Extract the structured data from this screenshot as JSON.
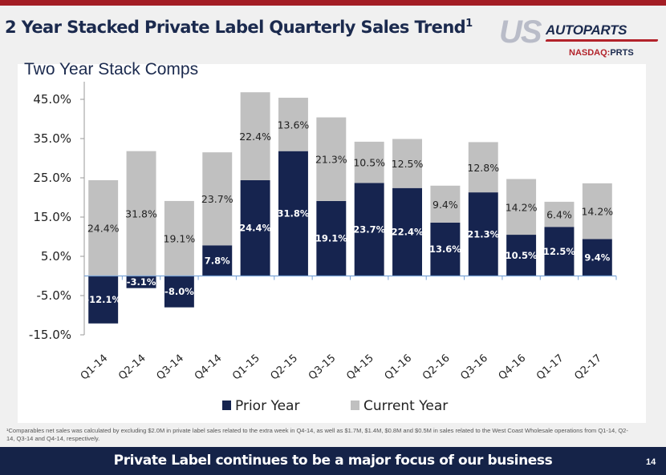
{
  "header": {
    "title": "2 Year Stacked Private Label Quarterly Sales Trend",
    "title_superscript": "1",
    "logo": {
      "us": "US",
      "autoparts": "AUTOPARTS",
      "registered": "®",
      "ticker_exchange": "NASDAQ:",
      "ticker_symbol": "PRTS"
    }
  },
  "colors": {
    "prior_year": "#16244f",
    "current_year": "#c0c0c0",
    "brand_red": "#a31d24",
    "navy": "#152348",
    "axis": "#7aa3d6"
  },
  "chart_data": {
    "type": "bar",
    "stacked": true,
    "title": "Two Year Stack Comps",
    "xlabel": "",
    "ylabel": "",
    "ylim": [
      -15.0,
      45.0
    ],
    "yticks": [
      45.0,
      35.0,
      25.0,
      15.0,
      5.0,
      -5.0,
      -15.0
    ],
    "ytick_labels": [
      "45.0%",
      "35.0%",
      "25.0%",
      "15.0%",
      "5.0%",
      "-5.0%",
      "-15.0%"
    ],
    "categories": [
      "Q1-14",
      "Q2-14",
      "Q3-14",
      "Q4-14",
      "Q1-15",
      "Q2-15",
      "Q3-15",
      "Q4-15",
      "Q1-16",
      "Q2-16",
      "Q3-16",
      "Q4-16",
      "Q1-17",
      "Q2-17"
    ],
    "series": [
      {
        "name": "Prior Year",
        "values": [
          -12.1,
          -3.1,
          -8.0,
          7.8,
          24.4,
          31.8,
          19.1,
          23.7,
          22.4,
          13.6,
          21.3,
          10.5,
          12.5,
          9.4
        ],
        "labels": [
          "-12.1%",
          "-3.1%",
          "-8.0%",
          "7.8%",
          "24.4%",
          "31.8%",
          "19.1%",
          "23.7%",
          "22.4%",
          "13.6%",
          "21.3%",
          "10.5%",
          "12.5%",
          "9.4%"
        ]
      },
      {
        "name": "Current Year",
        "values": [
          24.4,
          31.8,
          19.1,
          23.7,
          22.4,
          13.6,
          21.3,
          10.5,
          12.5,
          9.4,
          12.8,
          14.2,
          6.4,
          14.2
        ],
        "labels": [
          "24.4%",
          "31.8%",
          "19.1%",
          "23.7%",
          "22.4%",
          "13.6%",
          "21.3%",
          "10.5%",
          "12.5%",
          "9.4%",
          "12.8%",
          "14.2%",
          "6.4%",
          "14.2%"
        ]
      }
    ],
    "legend": {
      "position": "bottom",
      "entries": [
        "Prior Year",
        "Current Year"
      ]
    },
    "grid": false
  },
  "footnote": "¹Comparables net sales was calculated by excluding $2.0M in private label sales related to the extra week in Q4-14, as well as $1.7M, $1.4M, $0.8M and $0.5M in sales related to the West Coast Wholesale operations from  Q1-14, Q2-14, Q3-14 and Q4-14, respectively.",
  "footer": {
    "message": "Private Label continues to be a major focus of our business",
    "page_number": "14"
  }
}
